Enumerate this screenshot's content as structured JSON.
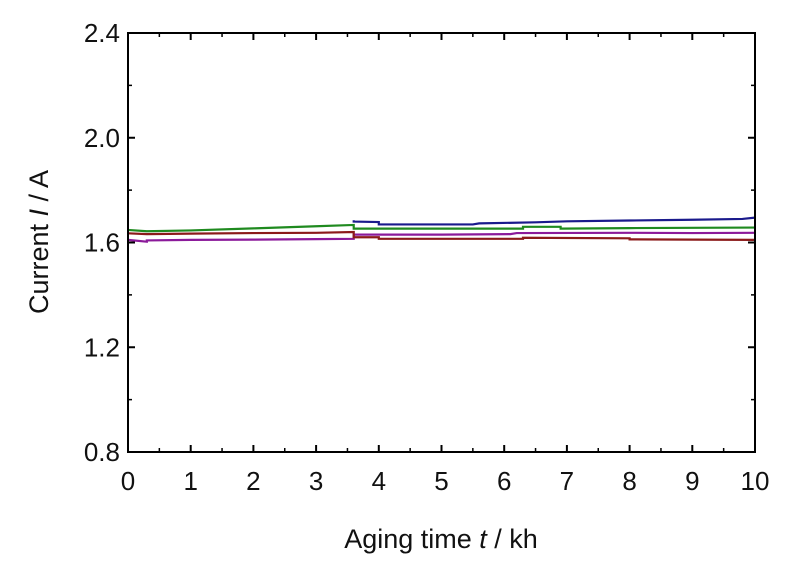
{
  "chart_data": {
    "type": "line",
    "title": "",
    "xlabel_prefix": "Aging time ",
    "xlabel_var": "t",
    "xlabel_suffix": " / kh",
    "ylabel_prefix": "Current ",
    "ylabel_var": "I",
    "ylabel_suffix": " / A",
    "xlim": [
      0,
      10
    ],
    "ylim": [
      0.8,
      2.4
    ],
    "xticks": [
      "0",
      "1",
      "2",
      "3",
      "4",
      "5",
      "6",
      "7",
      "8",
      "9",
      "10"
    ],
    "yticks": [
      "0.8",
      "1.2",
      "1.6",
      "2.0",
      "2.4"
    ],
    "grid": false,
    "series": [
      {
        "name": "blue",
        "color": "#1a1a8c",
        "x": [
          3.6,
          3.6,
          4.0,
          4.0,
          5.5,
          5.6,
          6.5,
          7.0,
          8.0,
          9.0,
          9.8,
          10
        ],
        "y": [
          1.685,
          1.68,
          1.678,
          1.669,
          1.669,
          1.673,
          1.677,
          1.681,
          1.684,
          1.687,
          1.69,
          1.695
        ]
      },
      {
        "name": "green",
        "color": "#1f8a1f",
        "x": [
          0,
          0.3,
          1,
          2,
          3,
          3.6,
          3.6,
          5,
          6.3,
          6.3,
          6.9,
          6.9,
          8,
          9,
          10
        ],
        "y": [
          1.648,
          1.643,
          1.646,
          1.654,
          1.662,
          1.667,
          1.653,
          1.653,
          1.653,
          1.66,
          1.66,
          1.653,
          1.655,
          1.656,
          1.657
        ]
      },
      {
        "name": "purple",
        "color": "#8b1a9a",
        "x": [
          0,
          0.3,
          0.3,
          1,
          2,
          3,
          3.6,
          3.6,
          5,
          6.1,
          6.2,
          8,
          9,
          10
        ],
        "y": [
          1.61,
          1.603,
          1.608,
          1.61,
          1.611,
          1.613,
          1.614,
          1.63,
          1.63,
          1.632,
          1.636,
          1.637,
          1.636,
          1.637
        ]
      },
      {
        "name": "red",
        "color": "#8b1a1a",
        "x": [
          0,
          0.3,
          1,
          2,
          3,
          3.6,
          3.6,
          4.0,
          4.0,
          6.3,
          6.3,
          8.0,
          8.0,
          10
        ],
        "y": [
          1.635,
          1.632,
          1.634,
          1.636,
          1.637,
          1.64,
          1.62,
          1.62,
          1.614,
          1.614,
          1.618,
          1.616,
          1.612,
          1.61
        ]
      }
    ]
  }
}
